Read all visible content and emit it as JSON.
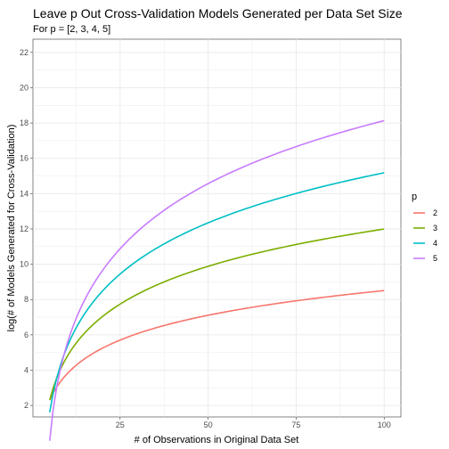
{
  "chart_data": {
    "type": "line",
    "title": "Leave p Out Cross-Validation Models Generated per Data Set Size",
    "subtitle": "For p = [2, 3, 4, 5]",
    "xlabel": "# of Observations in Original Data Set",
    "ylabel": "log(# of Models Generated for Cross-Validation)",
    "xlim": [
      0.25,
      104.75
    ],
    "ylim": [
      1.35,
      22.75
    ],
    "x_ticks": [
      25,
      50,
      75,
      100
    ],
    "y_ticks": [
      2,
      4,
      6,
      8,
      10,
      12,
      14,
      16,
      18,
      20,
      22
    ],
    "x_tick_labels": [
      "25",
      "50",
      "75",
      "100"
    ],
    "y_tick_labels": [
      "2",
      "4",
      "6",
      "8",
      "10",
      "12",
      "14",
      "16",
      "18",
      "20",
      "22"
    ],
    "grid": true,
    "legend": {
      "title": "p",
      "position": "right"
    },
    "x_range": [
      5,
      100
    ],
    "series": [
      {
        "name": "2",
        "p": 2,
        "color": "#F8766D"
      },
      {
        "name": "3",
        "p": 3,
        "color": "#7CAE00"
      },
      {
        "name": "4",
        "p": 4,
        "color": "#00BFC4"
      },
      {
        "name": "5",
        "p": 5,
        "color": "#C77CFF"
      }
    ]
  }
}
